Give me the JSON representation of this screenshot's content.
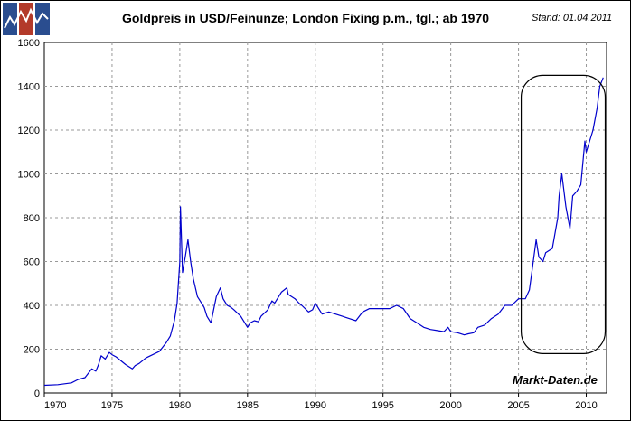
{
  "header": {
    "title": "Goldpreis in USD/Feinunze; London Fixing p.m., tgl.; ab 1970",
    "stand": "Stand: 01.04.2011"
  },
  "watermark": "Markt-Daten.de",
  "colors": {
    "series": "#0000cc",
    "grid": "#999999",
    "highlight_box": "#000000",
    "logo_blue": "#2a4d8f",
    "logo_red": "#b33a2a"
  },
  "chart_data": {
    "type": "line",
    "title": "Goldpreis in USD/Feinunze; London Fixing p.m., tgl.; ab 1970",
    "xlabel": "",
    "ylabel": "",
    "xlim": [
      1970,
      2011.5
    ],
    "ylim": [
      0,
      1600
    ],
    "grid": true,
    "legend": "none",
    "x_ticks": [
      "1970",
      "1975",
      "1980",
      "1985",
      "1990",
      "1995",
      "2000",
      "2005",
      "2010"
    ],
    "y_ticks": [
      "0",
      "200",
      "400",
      "600",
      "800",
      "1000",
      "1200",
      "1400",
      "1600"
    ],
    "highlight_range": {
      "x": [
        2005.2,
        2011.4
      ],
      "y": [
        180,
        1450
      ]
    },
    "series": [
      {
        "x": [
          1970.0,
          1971.0,
          1971.5,
          1972.0,
          1972.5,
          1973.0,
          1973.5,
          1973.8,
          1974.0,
          1974.2,
          1974.5,
          1974.8,
          1975.0,
          1975.3,
          1975.6,
          1976.0,
          1976.5,
          1976.7,
          1977.0,
          1977.5,
          1978.0,
          1978.5,
          1979.0,
          1979.3,
          1979.6,
          1979.8,
          1980.0,
          1980.05,
          1980.2,
          1980.4,
          1980.6,
          1980.8,
          1981.0,
          1981.3,
          1981.5,
          1981.8,
          1982.0,
          1982.3,
          1982.5,
          1982.7,
          1983.0,
          1983.2,
          1983.5,
          1983.8,
          1984.0,
          1984.5,
          1985.0,
          1985.2,
          1985.5,
          1985.8,
          1986.0,
          1986.5,
          1986.8,
          1987.0,
          1987.5,
          1987.9,
          1988.0,
          1988.5,
          1988.8,
          1989.0,
          1989.5,
          1989.8,
          1990.0,
          1990.5,
          1991.0,
          1991.5,
          1992.0,
          1992.5,
          1993.0,
          1993.5,
          1994.0,
          1994.5,
          1995.0,
          1995.5,
          1996.0,
          1996.5,
          1997.0,
          1997.5,
          1998.0,
          1998.5,
          1999.0,
          1999.5,
          1999.8,
          2000.0,
          2000.5,
          2001.0,
          2001.3,
          2001.7,
          2002.0,
          2002.5,
          2003.0,
          2003.5,
          2004.0,
          2004.5,
          2005.0,
          2005.5,
          2005.8,
          2006.0,
          2006.3,
          2006.5,
          2006.8,
          2007.0,
          2007.5,
          2007.9,
          2008.0,
          2008.2,
          2008.5,
          2008.8,
          2009.0,
          2009.3,
          2009.6,
          2009.9,
          2010.0,
          2010.5,
          2010.8,
          2011.0,
          2011.25
        ],
        "values": [
          35,
          38,
          42,
          46,
          62,
          70,
          110,
          100,
          130,
          170,
          155,
          185,
          175,
          165,
          150,
          130,
          110,
          125,
          135,
          160,
          175,
          190,
          230,
          260,
          330,
          410,
          600,
          850,
          550,
          620,
          700,
          600,
          520,
          440,
          420,
          390,
          350,
          320,
          380,
          440,
          480,
          430,
          400,
          390,
          380,
          350,
          300,
          320,
          330,
          325,
          350,
          380,
          420,
          410,
          460,
          480,
          450,
          430,
          410,
          400,
          370,
          380,
          410,
          360,
          370,
          360,
          350,
          340,
          330,
          370,
          385,
          385,
          385,
          385,
          400,
          385,
          340,
          320,
          300,
          290,
          285,
          280,
          300,
          280,
          275,
          265,
          270,
          275,
          300,
          310,
          340,
          360,
          400,
          400,
          430,
          430,
          470,
          560,
          700,
          620,
          600,
          640,
          660,
          800,
          900,
          1000,
          850,
          750,
          900,
          920,
          950,
          1150,
          1100,
          1200,
          1300,
          1400,
          1440
        ]
      }
    ]
  }
}
